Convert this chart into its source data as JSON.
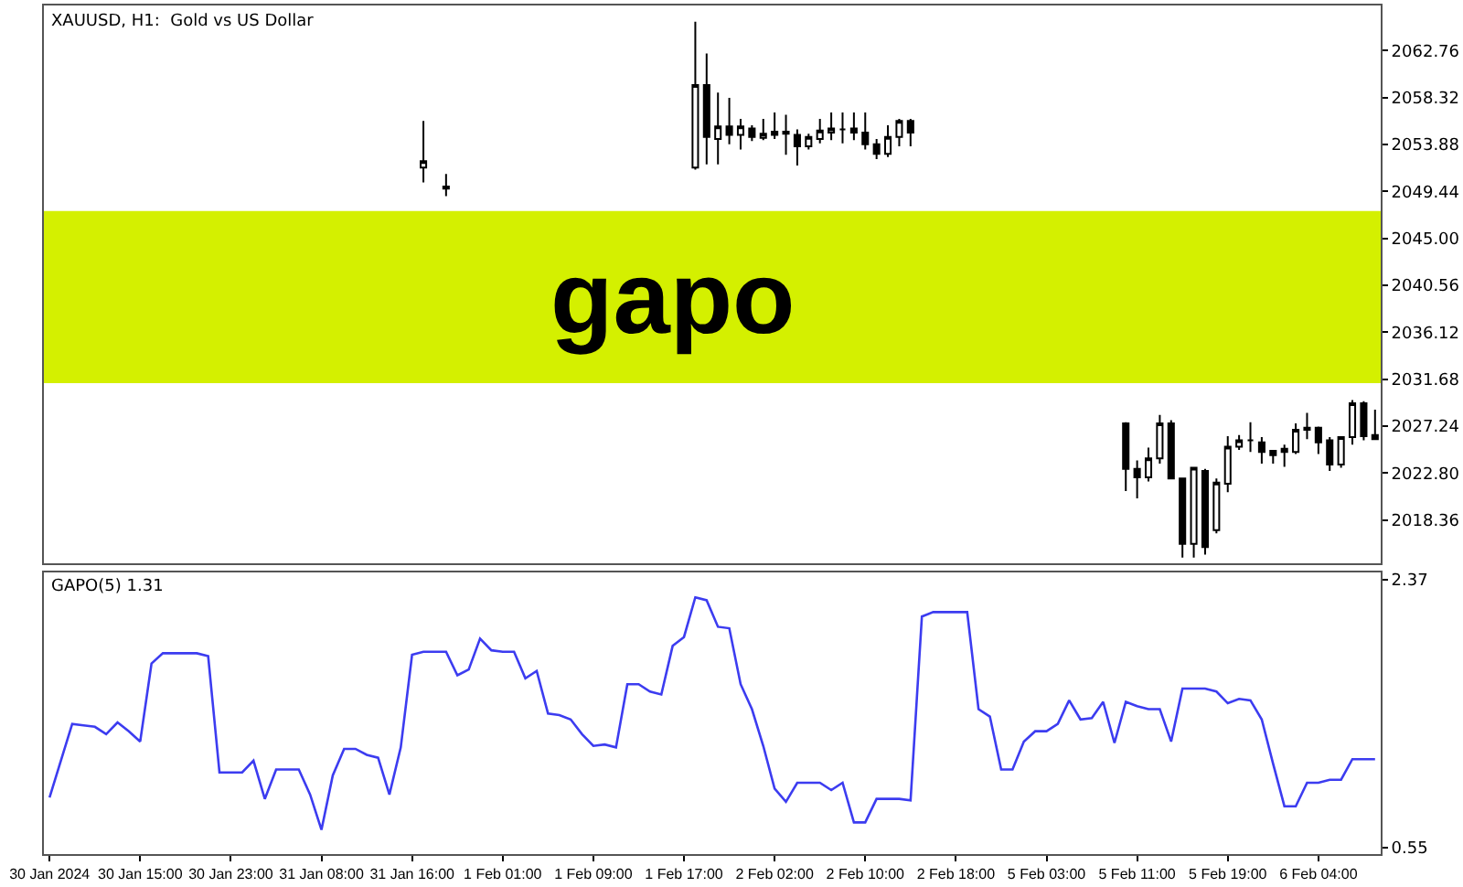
{
  "chart_data": [
    {
      "type": "candlestick",
      "title": "XAUUSD, H1:  Gold vs US Dollar",
      "ohlc": [
        null,
        null,
        null,
        null,
        null,
        null,
        null,
        null,
        null,
        null,
        null,
        null,
        null,
        null,
        null,
        null,
        null,
        null,
        null,
        null,
        null,
        null,
        null,
        null,
        null,
        null,
        null,
        null,
        null,
        null,
        null,
        null,
        null,
        [
          2051.7,
          2056.1,
          2050.3,
          2052.3
        ],
        null,
        [
          2049.9,
          2051.1,
          2049.0,
          2049.7
        ],
        null,
        null,
        null,
        null,
        null,
        null,
        null,
        null,
        null,
        null,
        null,
        null,
        null,
        null,
        null,
        null,
        null,
        null,
        null,
        null,
        null,
        [
          2051.7,
          2065.5,
          2051.5,
          2059.5
        ],
        [
          2059.5,
          2062.5,
          2052.0,
          2054.6
        ],
        [
          2054.4,
          2058.8,
          2052.0,
          2055.6
        ],
        [
          2055.6,
          2058.3,
          2053.9,
          2054.8
        ],
        [
          2054.8,
          2056.3,
          2053.4,
          2055.6
        ],
        [
          2055.4,
          2055.7,
          2054.2,
          2054.6
        ],
        [
          2054.5,
          2056.3,
          2054.3,
          2054.9
        ],
        [
          2054.8,
          2056.9,
          2054.4,
          2055.1
        ],
        [
          2055.1,
          2056.7,
          2052.9,
          2054.9
        ],
        [
          2054.8,
          2055.3,
          2051.9,
          2053.7
        ],
        [
          2053.7,
          2054.9,
          2053.4,
          2054.6
        ],
        [
          2054.4,
          2056.3,
          2054.0,
          2055.2
        ],
        [
          2055.0,
          2056.9,
          2054.3,
          2055.4
        ],
        [
          2055.3,
          2056.9,
          2054.0,
          2055.3
        ],
        [
          2055.4,
          2056.9,
          2054.3,
          2055.0
        ],
        [
          2055.0,
          2056.9,
          2053.4,
          2053.9
        ],
        [
          2053.9,
          2054.4,
          2052.5,
          2053.0
        ],
        [
          2053.0,
          2055.7,
          2052.7,
          2054.6
        ],
        [
          2054.6,
          2056.3,
          2053.7,
          2056.1
        ],
        [
          2056.1,
          2056.3,
          2053.7,
          2055.0
        ],
        null,
        null,
        null,
        null,
        null,
        null,
        null,
        null,
        null,
        null,
        null,
        null,
        null,
        null,
        null,
        null,
        null,
        null,
        [
          2027.5,
          2027.6,
          2021.1,
          2023.2
        ],
        [
          2023.2,
          2024.0,
          2020.4,
          2022.4
        ],
        [
          2022.4,
          2025.2,
          2022.0,
          2024.2
        ],
        [
          2024.2,
          2028.3,
          2023.7,
          2027.5
        ],
        [
          2027.5,
          2027.8,
          2022.3,
          2022.3
        ],
        [
          2022.3,
          2022.3,
          2014.8,
          2016.1
        ],
        [
          2016.1,
          2023.4,
          2014.8,
          2023.3
        ],
        [
          2023.0,
          2023.2,
          2015.1,
          2015.8
        ],
        [
          2017.4,
          2022.3,
          2017.1,
          2021.9
        ],
        [
          2021.8,
          2026.3,
          2021.0,
          2025.3
        ],
        [
          2025.3,
          2026.4,
          2025.0,
          2025.9
        ],
        [
          2025.9,
          2027.6,
          2024.8,
          2025.9
        ],
        [
          2025.7,
          2026.2,
          2023.7,
          2024.8
        ],
        [
          2024.9,
          2025.0,
          2023.7,
          2024.5
        ],
        [
          2024.8,
          2025.5,
          2023.4,
          2025.1
        ],
        [
          2024.8,
          2027.5,
          2024.6,
          2026.9
        ],
        [
          2026.9,
          2028.5,
          2026.0,
          2027.1
        ],
        [
          2027.1,
          2027.2,
          2024.6,
          2025.7
        ],
        [
          2025.9,
          2026.2,
          2023.0,
          2023.6
        ],
        [
          2023.6,
          2026.3,
          2023.3,
          2026.2
        ],
        [
          2026.2,
          2029.7,
          2025.5,
          2029.4
        ],
        [
          2029.4,
          2029.6,
          2025.9,
          2026.3
        ],
        [
          2026.4,
          2028.8,
          2026.0,
          2026.0
        ]
      ],
      "ylim": [
        2014.27,
        2067.03
      ],
      "yticks": [
        2018.36,
        {
          "value": 2022.8,
          "label": "2022.80"
        },
        2027.24,
        2031.68,
        2036.12,
        2040.56,
        {
          "value": 2045,
          "label": "2045.00"
        },
        2049.44,
        2053.88,
        2058.32,
        2062.76
      ],
      "bands": [
        {
          "axis": "y",
          "from": 2031.3,
          "to": 2047.6,
          "label": "gapo",
          "color": "#d4f000"
        }
      ],
      "tick_labels": "y",
      "grid": false
    },
    {
      "type": "line",
      "title": "GAPO(5) 1.31",
      "color": "#3c3cf0",
      "categories": [
        "30 Jan 2024",
        null,
        null,
        null,
        null,
        null,
        null,
        null,
        "30 Jan 15:00",
        null,
        null,
        null,
        null,
        null,
        null,
        null,
        "30 Jan 23:00",
        null,
        null,
        null,
        null,
        null,
        null,
        null,
        "31 Jan 08:00",
        null,
        null,
        null,
        null,
        null,
        null,
        null,
        "31 Jan 16:00",
        null,
        null,
        null,
        null,
        null,
        null,
        null,
        "1 Feb 01:00",
        null,
        null,
        null,
        null,
        null,
        null,
        null,
        "1 Feb 09:00",
        null,
        null,
        null,
        null,
        null,
        null,
        null,
        "1 Feb 17:00",
        null,
        null,
        null,
        null,
        null,
        null,
        null,
        "2 Feb 02:00",
        null,
        null,
        null,
        null,
        null,
        null,
        null,
        "2 Feb 10:00",
        null,
        null,
        null,
        null,
        null,
        null,
        null,
        "2 Feb 18:00",
        null,
        null,
        null,
        null,
        null,
        null,
        null,
        "5 Feb 03:00",
        null,
        null,
        null,
        null,
        null,
        null,
        null,
        "5 Feb 11:00",
        null,
        null,
        null,
        null,
        null,
        null,
        null,
        "5 Feb 19:00",
        null,
        null,
        null,
        null,
        null,
        null,
        null,
        "6 Feb 04:00",
        null,
        null,
        null,
        null,
        null
      ],
      "values": [
        0.89,
        1.14,
        1.39,
        1.38,
        1.37,
        1.32,
        1.4,
        1.34,
        1.27,
        1.8,
        1.87,
        1.87,
        1.87,
        1.87,
        1.85,
        1.06,
        1.06,
        1.06,
        1.14,
        0.88,
        1.08,
        1.08,
        1.08,
        0.91,
        0.67,
        1.04,
        1.22,
        1.22,
        1.18,
        1.16,
        0.91,
        1.23,
        1.86,
        1.88,
        1.88,
        1.88,
        1.72,
        1.76,
        1.97,
        1.89,
        1.88,
        1.88,
        1.7,
        1.75,
        1.46,
        1.45,
        1.42,
        1.32,
        1.24,
        1.25,
        1.23,
        1.66,
        1.66,
        1.61,
        1.59,
        1.92,
        1.98,
        2.25,
        2.23,
        2.05,
        2.04,
        1.66,
        1.49,
        1.24,
        0.95,
        0.86,
        0.99,
        0.99,
        0.99,
        0.94,
        0.99,
        0.72,
        0.72,
        0.88,
        0.88,
        0.88,
        0.87,
        2.12,
        2.15,
        2.15,
        2.15,
        2.15,
        1.49,
        1.44,
        1.08,
        1.08,
        1.27,
        1.34,
        1.34,
        1.39,
        1.55,
        1.42,
        1.43,
        1.54,
        1.26,
        1.54,
        1.51,
        1.49,
        1.49,
        1.27,
        1.63,
        1.63,
        1.63,
        1.61,
        1.53,
        1.56,
        1.55,
        1.42,
        1.12,
        0.83,
        0.83,
        0.99,
        0.99,
        1.01,
        1.01,
        1.15,
        1.15,
        1.15
      ],
      "ylim": [
        0.505,
        2.42
      ],
      "yticks": [
        0.55,
        2.37
      ],
      "grid": false,
      "marker": "none",
      "line_style": "solid"
    }
  ]
}
